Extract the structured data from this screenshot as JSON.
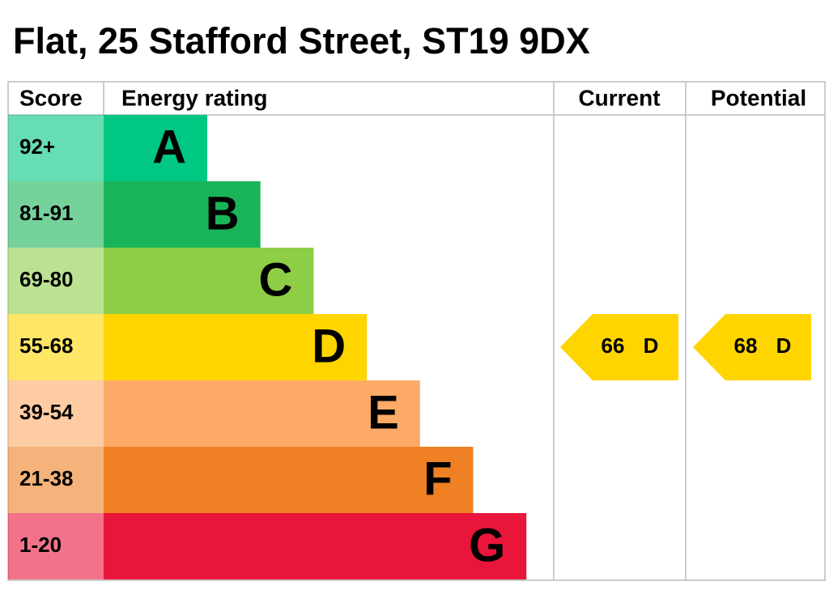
{
  "title": "Flat, 25 Stafford Street, ST19 9DX",
  "header": {
    "score": "Score",
    "rating": "Energy rating",
    "current": "Current",
    "potential": "Potential"
  },
  "bands": [
    {
      "score": "92+",
      "letter": "A",
      "color": "#00c781"
    },
    {
      "score": "81-91",
      "letter": "B",
      "color": "#19b459"
    },
    {
      "score": "69-80",
      "letter": "C",
      "color": "#8dce46"
    },
    {
      "score": "55-68",
      "letter": "D",
      "color": "#ffd500"
    },
    {
      "score": "39-54",
      "letter": "E",
      "color": "#fcaa65"
    },
    {
      "score": "21-38",
      "letter": "F",
      "color": "#ef8023"
    },
    {
      "score": "1-20",
      "letter": "G",
      "color": "#e9153b"
    }
  ],
  "current": {
    "value": 66,
    "letter": "D"
  },
  "potential": {
    "value": 68,
    "letter": "D"
  }
}
